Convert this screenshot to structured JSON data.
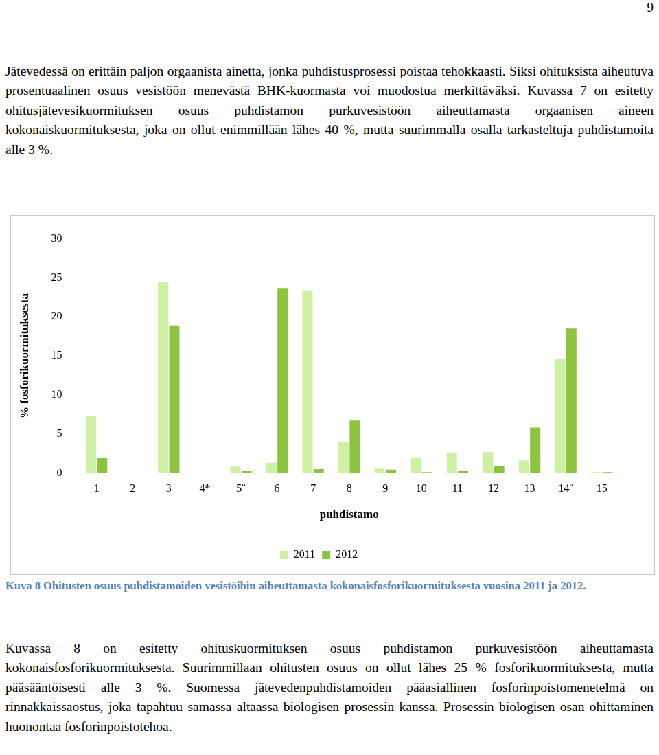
{
  "page_number": "9",
  "text_before": "Jätevedessä on erittäin paljon orgaanista ainetta, jonka puhdistusprosessi poistaa tehokkaasti. Siksi ohituksista aiheutuva prosentuaalinen osuus vesistöön menevästä BHK-kuormasta voi muodostua merkittäväksi. Kuvassa 7 on esitetty ohitusjätevesikuormituksen osuus puhdistamon purkuvesistöön aiheuttamasta orgaanisen aineen kokonaiskuormituksesta, joka on ollut enimmillään lähes 40 %, mutta suurimmalla osalla tarkasteltuja puhdistamoita alle 3 %.",
  "chart_data": {
    "type": "bar",
    "x_label": "puhdistamo",
    "y_label": "% fosforikuormituksesta",
    "categories": [
      "1",
      "2",
      "3",
      "4*",
      "5¨",
      "6",
      "7",
      "8",
      "9",
      "10",
      "11",
      "12",
      "13",
      "14¨",
      "15"
    ],
    "series": [
      {
        "name": "2011",
        "color": "#cdf0a2",
        "values": [
          7.3,
          0,
          24.4,
          0,
          0.8,
          1.3,
          23.3,
          4.0,
          0.6,
          2.0,
          2.5,
          2.7,
          1.6,
          14.6,
          0.1
        ]
      },
      {
        "name": "2012",
        "color": "#8cc43f",
        "values": [
          1.9,
          0,
          18.9,
          0,
          0.3,
          23.7,
          0.5,
          6.7,
          0.4,
          0.1,
          0.3,
          0.9,
          5.8,
          18.5,
          0.1
        ]
      }
    ],
    "ylim": [
      0,
      30
    ],
    "yticks": [
      0,
      5,
      10,
      15,
      20,
      25,
      30
    ],
    "grid": false,
    "legend": "bottom"
  },
  "caption": "Kuva 8 Ohitusten osuus puhdistamoiden vesistöihin aiheuttamasta kokonaisfosforikuormituksesta vuosina 2011 ja 2012.",
  "text_after": "Kuvassa 8 on esitetty ohituskuormituksen osuus puhdistamon purkuvesistöön aiheuttamasta kokonaisfosforikuormituksesta. Suurimmillaan ohitusten osuus on ollut lähes 25 % fosforikuormituksesta, mutta pääsääntöisesti alle 3 %. Suomessa jätevedenpuhdistamoiden pääasiallinen fosforinpoistomenetelmä on rinnakkaissaostus, joka tapahtuu samassa altaassa biologisen prosessin kanssa. Prosessin biologisen osan ohittaminen huonontaa fosforinpoistotehoa."
}
